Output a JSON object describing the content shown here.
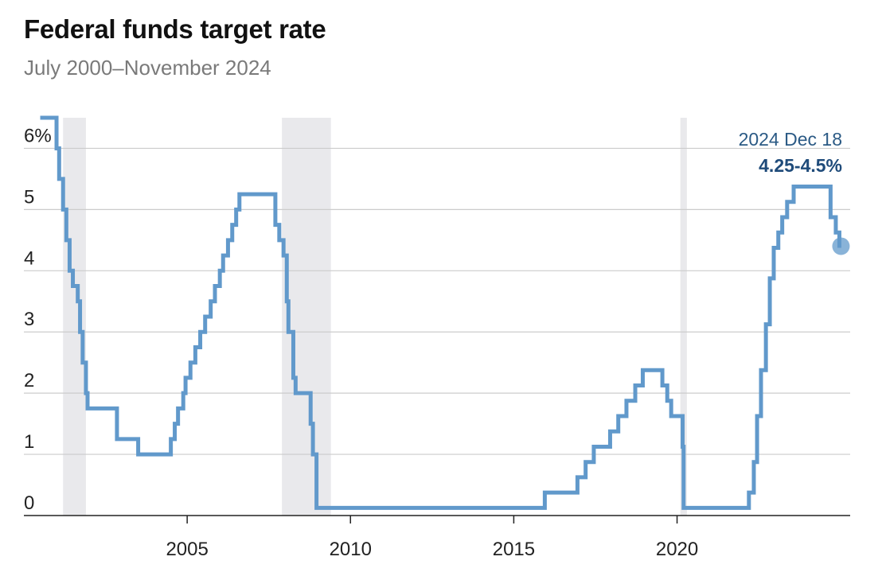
{
  "chart_data": {
    "type": "line",
    "title": "Federal funds target rate",
    "subtitle": "July 2000–November 2024",
    "xlabel": "",
    "ylabel": "",
    "xlim": [
      2000.0,
      2025.3
    ],
    "ylim": [
      0,
      6.5
    ],
    "x_ticks": [
      {
        "value": 2005,
        "label": "2005"
      },
      {
        "value": 2010,
        "label": "2010"
      },
      {
        "value": 2015,
        "label": "2015"
      },
      {
        "value": 2020,
        "label": "2020"
      }
    ],
    "y_ticks": [
      {
        "value": 6,
        "label": "6%"
      },
      {
        "value": 5,
        "label": "5"
      },
      {
        "value": 4,
        "label": "4"
      },
      {
        "value": 3,
        "label": "3"
      },
      {
        "value": 2,
        "label": "2"
      },
      {
        "value": 1,
        "label": "1"
      },
      {
        "value": 0,
        "label": "0"
      }
    ],
    "recessions": [
      {
        "start": 2001.2,
        "end": 2001.9
      },
      {
        "start": 2007.9,
        "end": 2009.4
      },
      {
        "start": 2020.1,
        "end": 2020.3
      }
    ],
    "series": [
      {
        "name": "Federal funds target rate",
        "color": "#6199cb",
        "step": true,
        "points": [
          [
            2000.5,
            6.5
          ],
          [
            2001.0,
            6.0
          ],
          [
            2001.08,
            5.5
          ],
          [
            2001.2,
            5.0
          ],
          [
            2001.3,
            4.5
          ],
          [
            2001.4,
            4.0
          ],
          [
            2001.5,
            3.75
          ],
          [
            2001.65,
            3.5
          ],
          [
            2001.72,
            3.0
          ],
          [
            2001.8,
            2.5
          ],
          [
            2001.9,
            2.0
          ],
          [
            2001.95,
            1.75
          ],
          [
            2002.85,
            1.25
          ],
          [
            2003.5,
            1.0
          ],
          [
            2004.5,
            1.25
          ],
          [
            2004.62,
            1.5
          ],
          [
            2004.72,
            1.75
          ],
          [
            2004.88,
            2.0
          ],
          [
            2004.95,
            2.25
          ],
          [
            2005.1,
            2.5
          ],
          [
            2005.25,
            2.75
          ],
          [
            2005.4,
            3.0
          ],
          [
            2005.55,
            3.25
          ],
          [
            2005.72,
            3.5
          ],
          [
            2005.85,
            3.75
          ],
          [
            2006.0,
            4.0
          ],
          [
            2006.1,
            4.25
          ],
          [
            2006.25,
            4.5
          ],
          [
            2006.38,
            4.75
          ],
          [
            2006.5,
            5.0
          ],
          [
            2006.6,
            5.25
          ],
          [
            2007.7,
            4.75
          ],
          [
            2007.82,
            4.5
          ],
          [
            2007.95,
            4.25
          ],
          [
            2008.05,
            3.5
          ],
          [
            2008.1,
            3.0
          ],
          [
            2008.25,
            2.25
          ],
          [
            2008.32,
            2.0
          ],
          [
            2008.78,
            1.5
          ],
          [
            2008.85,
            1.0
          ],
          [
            2008.96,
            0.125
          ],
          [
            2015.95,
            0.375
          ],
          [
            2016.95,
            0.625
          ],
          [
            2017.2,
            0.875
          ],
          [
            2017.45,
            1.125
          ],
          [
            2017.95,
            1.375
          ],
          [
            2018.2,
            1.625
          ],
          [
            2018.45,
            1.875
          ],
          [
            2018.72,
            2.125
          ],
          [
            2018.95,
            2.375
          ],
          [
            2019.55,
            2.125
          ],
          [
            2019.7,
            1.875
          ],
          [
            2019.82,
            1.625
          ],
          [
            2020.17,
            1.125
          ],
          [
            2020.2,
            0.125
          ],
          [
            2022.2,
            0.375
          ],
          [
            2022.35,
            0.875
          ],
          [
            2022.45,
            1.625
          ],
          [
            2022.57,
            2.375
          ],
          [
            2022.72,
            3.125
          ],
          [
            2022.84,
            3.875
          ],
          [
            2022.96,
            4.375
          ],
          [
            2023.1,
            4.625
          ],
          [
            2023.22,
            4.875
          ],
          [
            2023.37,
            5.125
          ],
          [
            2023.57,
            5.375
          ],
          [
            2024.7,
            4.875
          ],
          [
            2024.86,
            4.625
          ],
          [
            2024.97,
            4.375
          ]
        ],
        "end_marker": {
          "x": 2024.97,
          "y": 4.375
        }
      }
    ],
    "annotation": {
      "date": "2024 Dec 18",
      "value": "4.25-4.5%"
    },
    "legend": "none",
    "grid": "horizontal"
  }
}
